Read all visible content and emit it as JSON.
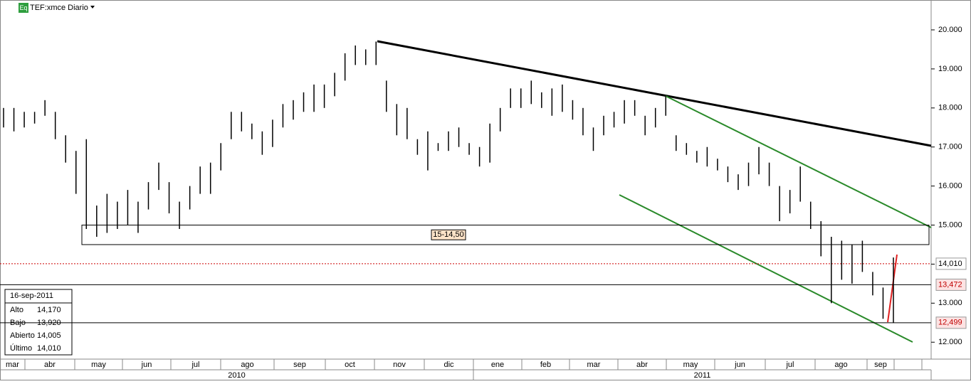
{
  "header": {
    "badge": "Eq",
    "title": "TEF:xmce Diario"
  },
  "chart_data": {
    "type": "ohlc",
    "high": [
      18.0,
      18.0,
      17.9,
      17.9,
      18.2,
      17.9,
      17.3,
      16.9,
      17.2,
      15.5,
      15.8,
      15.6,
      15.9,
      15.6,
      16.1,
      16.6,
      16.1,
      15.6,
      16.0,
      16.5,
      16.6,
      17.1,
      17.9,
      17.9,
      17.6,
      17.4,
      17.7,
      18.1,
      18.2,
      18.4,
      18.6,
      18.6,
      18.9,
      19.4,
      19.6,
      19.5,
      19.7,
      18.7,
      18.1,
      18.0,
      17.2,
      17.4,
      17.1,
      17.4,
      17.5,
      17.1,
      17.0,
      17.6,
      18.0,
      18.5,
      18.5,
      18.7,
      18.4,
      18.5,
      18.6,
      18.2,
      18.0,
      17.5,
      17.8,
      17.9,
      18.2,
      18.2,
      17.8,
      18.0,
      18.3,
      17.3,
      17.1,
      16.9,
      17.0,
      16.7,
      16.5,
      16.3,
      16.6,
      17.0,
      16.6,
      16.0,
      15.9,
      16.5,
      15.6,
      15.1,
      14.7,
      14.6,
      14.5,
      14.6,
      13.8,
      13.4,
      14.17
    ],
    "low": [
      17.5,
      17.4,
      17.5,
      17.6,
      17.8,
      17.2,
      16.6,
      15.8,
      14.9,
      14.7,
      14.8,
      14.9,
      15.0,
      14.8,
      15.4,
      15.9,
      15.3,
      14.9,
      15.4,
      15.8,
      15.8,
      16.4,
      17.2,
      17.4,
      17.2,
      16.8,
      17.0,
      17.5,
      17.7,
      17.9,
      17.9,
      18.0,
      18.3,
      18.7,
      19.1,
      19.1,
      19.1,
      17.9,
      17.3,
      17.2,
      16.8,
      16.4,
      16.9,
      16.9,
      17.0,
      16.8,
      16.5,
      16.6,
      17.4,
      18.0,
      18.0,
      18.1,
      18.0,
      17.8,
      17.9,
      17.7,
      17.3,
      16.9,
      17.3,
      17.5,
      17.6,
      17.8,
      17.3,
      17.5,
      17.8,
      16.9,
      16.8,
      16.6,
      16.5,
      16.4,
      16.1,
      15.9,
      16.0,
      16.3,
      16.0,
      15.1,
      15.3,
      15.6,
      14.9,
      14.2,
      13.0,
      13.6,
      13.5,
      13.8,
      13.2,
      12.6,
      12.5
    ],
    "color": "#000000",
    "ylim": [
      11.567,
      20.765
    ],
    "yticks": [
      {
        "value": 12,
        "label": "12.000"
      },
      {
        "value": 13,
        "label": "13.000"
      },
      {
        "value": 14,
        "label": "14.000"
      },
      {
        "value": 15,
        "label": "15.000"
      },
      {
        "value": 16,
        "label": "16.000"
      },
      {
        "value": 17,
        "label": "17.000"
      },
      {
        "value": 18,
        "label": "18.000"
      },
      {
        "value": 19,
        "label": "19.000"
      },
      {
        "value": 20,
        "label": "20.000"
      }
    ],
    "months": [
      "mar",
      "abr",
      "may",
      "jun",
      "jul",
      "ago",
      "sep",
      "oct",
      "nov",
      "dic",
      "ene",
      "feb",
      "mar",
      "abr",
      "may",
      "jun",
      "jul",
      "ago",
      "sep"
    ],
    "years": [
      "2010",
      "2011"
    ],
    "zone": {
      "range": [
        15,
        14.5
      ],
      "label": "15-14,50"
    },
    "levels": [
      {
        "value": 14.01,
        "label": "14,010",
        "color": "#cc0000"
      },
      {
        "value": 13.472,
        "label": "13,472",
        "color": "#000000"
      },
      {
        "value": 12.499,
        "label": "12,499",
        "color": "#000000"
      }
    ],
    "info": {
      "date": "16-sep-2011",
      "rows": [
        [
          "Alto",
          "14,170"
        ],
        [
          "Bajo",
          "13,920"
        ],
        [
          "Abierto",
          "14,005"
        ],
        [
          "Último",
          "14,010"
        ]
      ]
    }
  }
}
